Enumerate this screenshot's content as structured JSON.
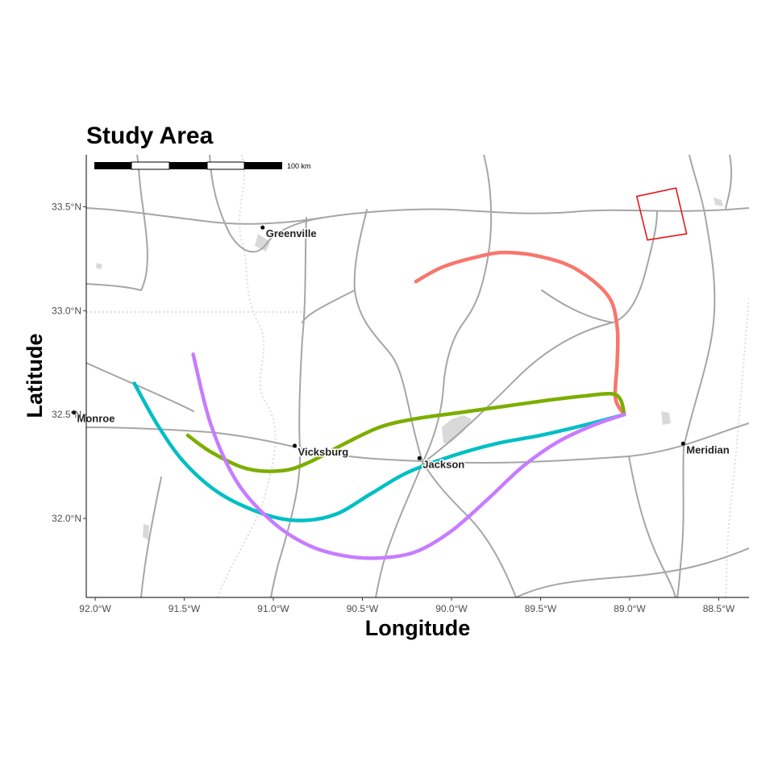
{
  "title": "Study Area",
  "axes": {
    "x_label": "Longitude",
    "y_label": "Latitude",
    "x_ticks": [
      {
        "value": -92.0,
        "label": "92.0°W"
      },
      {
        "value": -91.5,
        "label": "91.5°W"
      },
      {
        "value": -91.0,
        "label": "91.0°W"
      },
      {
        "value": -90.5,
        "label": "90.5°W"
      },
      {
        "value": -90.0,
        "label": "90.0°W"
      },
      {
        "value": -89.5,
        "label": "89.5°W"
      },
      {
        "value": -89.0,
        "label": "89.0°W"
      },
      {
        "value": -88.5,
        "label": "88.5°W"
      }
    ],
    "y_ticks": [
      {
        "value": 32.0,
        "label": "32.0°N"
      },
      {
        "value": 32.5,
        "label": "32.5°N"
      },
      {
        "value": 33.0,
        "label": "33.0°N"
      },
      {
        "value": 33.5,
        "label": "33.5°N"
      }
    ],
    "xlim": [
      -92.05,
      -88.33
    ],
    "ylim": [
      31.62,
      33.75
    ]
  },
  "scale_bar": {
    "label": "100 km",
    "segments": 5
  },
  "cities": [
    {
      "name": "Greenville",
      "lon": -91.06,
      "lat": 33.4
    },
    {
      "name": "Monroe",
      "lon": -92.12,
      "lat": 32.51
    },
    {
      "name": "Vicksburg",
      "lon": -90.88,
      "lat": 32.35
    },
    {
      "name": "Jackson",
      "lon": -90.18,
      "lat": 32.29
    },
    {
      "name": "Meridian",
      "lon": -88.7,
      "lat": 32.36
    }
  ],
  "colors": {
    "track_red": "#f8766d",
    "track_green": "#7cae00",
    "track_cyan": "#00bfc4",
    "track_purple": "#c77cff",
    "study_box": "#e31a1c",
    "roads": "#a6a6a6",
    "water": "#d9d9d9"
  },
  "chart_data": {
    "type": "line",
    "title": "Study Area",
    "xlabel": "Longitude",
    "ylabel": "Latitude",
    "xlim": [
      -92.05,
      -88.33
    ],
    "ylim": [
      31.62,
      33.75
    ],
    "grid": false,
    "series": [
      {
        "color": "#f8766d",
        "points": [
          [
            -90.2,
            33.14
          ],
          [
            -90.05,
            33.21
          ],
          [
            -89.85,
            33.26
          ],
          [
            -89.7,
            33.28
          ],
          [
            -89.5,
            33.26
          ],
          [
            -89.3,
            33.2
          ],
          [
            -89.12,
            33.07
          ],
          [
            -89.07,
            32.92
          ],
          [
            -89.07,
            32.75
          ],
          [
            -89.08,
            32.58
          ],
          [
            -89.03,
            32.5
          ]
        ]
      },
      {
        "color": "#7cae00",
        "points": [
          [
            -91.48,
            32.4
          ],
          [
            -91.35,
            32.32
          ],
          [
            -91.15,
            32.24
          ],
          [
            -90.95,
            32.23
          ],
          [
            -90.8,
            32.27
          ],
          [
            -90.6,
            32.36
          ],
          [
            -90.4,
            32.44
          ],
          [
            -90.2,
            32.48
          ],
          [
            -89.95,
            32.51
          ],
          [
            -89.7,
            32.54
          ],
          [
            -89.45,
            32.57
          ],
          [
            -89.25,
            32.59
          ],
          [
            -89.1,
            32.6
          ],
          [
            -89.05,
            32.57
          ],
          [
            -89.03,
            32.5
          ]
        ]
      },
      {
        "color": "#00bfc4",
        "points": [
          [
            -91.78,
            32.65
          ],
          [
            -91.65,
            32.45
          ],
          [
            -91.5,
            32.27
          ],
          [
            -91.3,
            32.12
          ],
          [
            -91.05,
            32.02
          ],
          [
            -90.85,
            31.99
          ],
          [
            -90.65,
            32.02
          ],
          [
            -90.45,
            32.12
          ],
          [
            -90.25,
            32.22
          ],
          [
            -90.0,
            32.3
          ],
          [
            -89.75,
            32.36
          ],
          [
            -89.5,
            32.4
          ],
          [
            -89.25,
            32.45
          ],
          [
            -89.03,
            32.5
          ]
        ]
      },
      {
        "color": "#c77cff",
        "points": [
          [
            -91.45,
            32.79
          ],
          [
            -91.35,
            32.45
          ],
          [
            -91.2,
            32.17
          ],
          [
            -91.0,
            31.98
          ],
          [
            -90.8,
            31.87
          ],
          [
            -90.6,
            31.82
          ],
          [
            -90.4,
            31.81
          ],
          [
            -90.2,
            31.84
          ],
          [
            -90.0,
            31.94
          ],
          [
            -89.8,
            32.09
          ],
          [
            -89.6,
            32.25
          ],
          [
            -89.4,
            32.37
          ],
          [
            -89.2,
            32.45
          ],
          [
            -89.03,
            32.5
          ]
        ]
      }
    ],
    "study_box": {
      "corners": [
        [
          -88.96,
          33.55
        ],
        [
          -88.74,
          33.59
        ],
        [
          -88.68,
          33.37
        ],
        [
          -88.9,
          33.34
        ]
      ]
    }
  }
}
